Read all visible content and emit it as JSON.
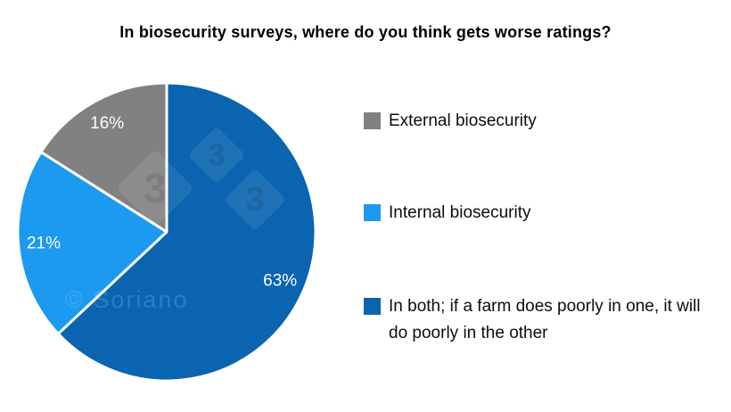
{
  "title": "In biosecurity surveys, where do you think gets worse ratings?",
  "chart_data": {
    "type": "pie",
    "title": "In biosecurity surveys, where do you think gets worse ratings?",
    "unit": "percent",
    "start_angle_deg": 0,
    "direction": "clockwise",
    "slices": [
      {
        "label": "In both; if a farm does poorly in one, it will do poorly in the other",
        "value": 63,
        "display_label": "63%",
        "color": "#0a64b0"
      },
      {
        "label": "Internal biosecurity",
        "value": 21,
        "display_label": "21%",
        "color": "#1b9af0"
      },
      {
        "label": "External biosecurity",
        "value": 16,
        "display_label": "16%",
        "color": "#818181"
      }
    ],
    "slice_label_color": "#ffffff",
    "legend_position": "right"
  },
  "legend": {
    "items": [
      {
        "label": "External biosecurity",
        "color": "#818181"
      },
      {
        "label": "Internal biosecurity",
        "color": "#1b9af0"
      },
      {
        "label": "In both; if a farm does poorly in one, it will do poorly in the other",
        "color": "#0a64b0"
      }
    ]
  },
  "watermark": {
    "diamond_glyph": "3",
    "credit": "© Soriano"
  }
}
